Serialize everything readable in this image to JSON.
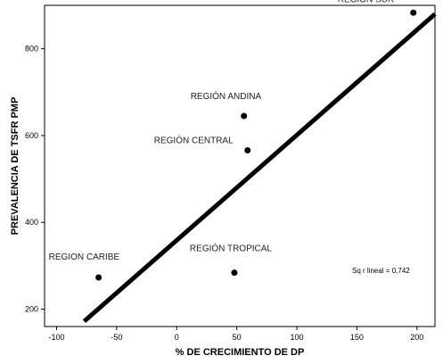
{
  "chart_data": {
    "type": "scatter",
    "xlabel": "% DE CRECIMIENTO DE DP",
    "ylabel": "PREVALENCIA DE TSFR PMP",
    "xlim": [
      -110,
      215
    ],
    "ylim": [
      160,
      900
    ],
    "x_ticks": [
      "-100",
      "-50",
      "0",
      "50",
      "100",
      "150",
      "200"
    ],
    "y_ticks": [
      "200",
      "400",
      "600",
      "800"
    ],
    "grid": false,
    "points": [
      {
        "label": "REGIÓN SUR",
        "x": 197,
        "y": 883
      },
      {
        "label": "REGIÓN ANDINA",
        "x": 56,
        "y": 645
      },
      {
        "label": "REGIÓN CENTRAL",
        "x": 59,
        "y": 566
      },
      {
        "label": "REGION CARIBE",
        "x": -65,
        "y": 273
      },
      {
        "label": "REGIÓN TROPICAL",
        "x": 48,
        "y": 284
      }
    ],
    "fit_line": {
      "x": [
        -77,
        215
      ],
      "y": [
        172,
        880
      ]
    },
    "annotation": "Sq r lineal = 0,742"
  }
}
